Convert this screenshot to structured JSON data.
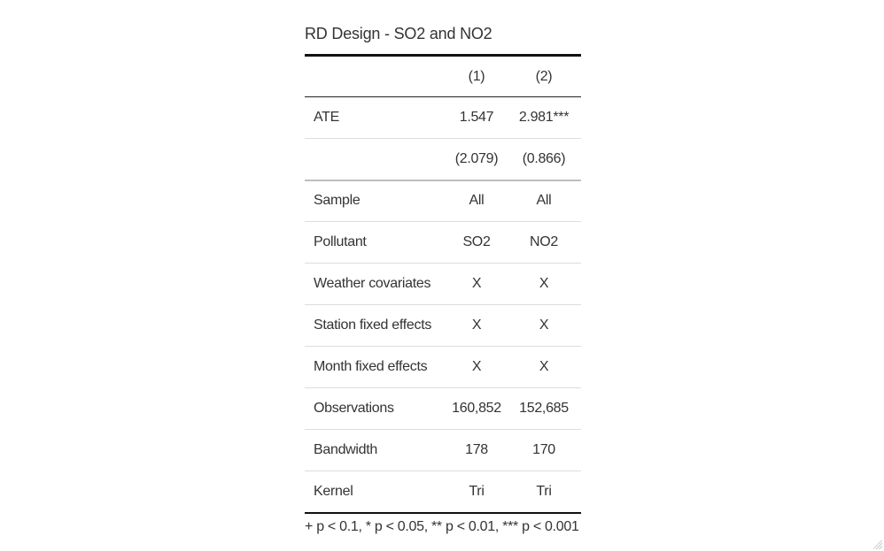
{
  "table": {
    "caption": "RD Design - SO2 and NO2",
    "headers": [
      "",
      "(1)",
      "(2)"
    ],
    "rows": [
      {
        "label": "ATE",
        "col1": "1.547",
        "col2": "2.981***"
      },
      {
        "label": "",
        "col1": "(2.079)",
        "col2": "(0.866)"
      },
      {
        "label": "Sample",
        "col1": "All",
        "col2": "All"
      },
      {
        "label": "Pollutant",
        "col1": "SO2",
        "col2": "NO2"
      },
      {
        "label": "Weather covariates",
        "col1": "X",
        "col2": "X"
      },
      {
        "label": "Station fixed effects",
        "col1": "X",
        "col2": "X"
      },
      {
        "label": "Month fixed effects",
        "col1": "X",
        "col2": "X"
      },
      {
        "label": "Observations",
        "col1": "160,852",
        "col2": "152,685"
      },
      {
        "label": "Bandwidth",
        "col1": "178",
        "col2": "170"
      },
      {
        "label": "Kernel",
        "col1": "Tri",
        "col2": "Tri"
      }
    ],
    "note": "+ p < 0.1, * p < 0.05, ** p < 0.01, *** p < 0.001"
  },
  "icons": {
    "resize_grip": "resize-grip-icon"
  }
}
